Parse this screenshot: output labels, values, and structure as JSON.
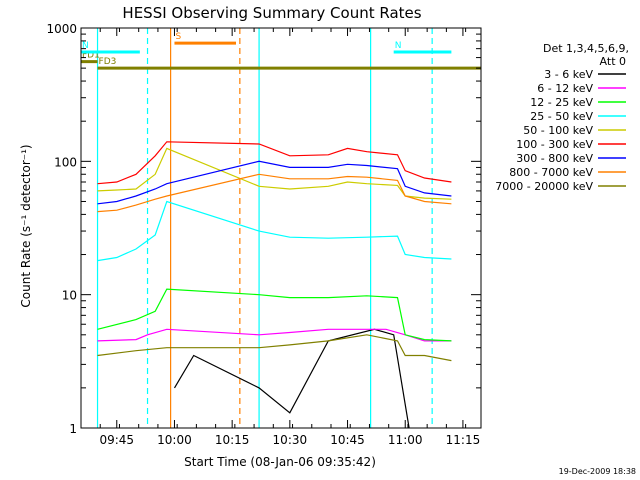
{
  "chart_data": {
    "type": "line",
    "title": "HESSI Observing Summary Count Rates",
    "xlabel": "Start Time (08-Jan-06 09:35:42)",
    "ylabel": "Count Rate (s⁻¹ detector⁻¹)",
    "ylog": true,
    "ylim": [
      1,
      1000
    ],
    "xlim_min_after_09_35": [
      0,
      104
    ],
    "x_ticks": [
      "09:45",
      "10:00",
      "10:15",
      "10:30",
      "10:45",
      "11:00",
      "11:15"
    ],
    "y_ticks": [
      "1",
      "10",
      "100",
      "1000"
    ],
    "legend_header": [
      "Det 1,3,4,5,6,9,",
      "Att 0"
    ],
    "legend_position": "right",
    "footer_date": "19-Dec-2009 18:38",
    "flag_labels": [
      "FD1",
      "FD3",
      "N",
      "S"
    ],
    "x_unit_note": "x values are clock times on 08-Jan-06",
    "series": [
      {
        "name": "3 - 6 keV",
        "color": "#000000",
        "x": [
          "10:00",
          "10:05",
          "10:22",
          "10:30",
          "10:40",
          "10:52",
          "10:57",
          "11:01"
        ],
        "y": [
          2.0,
          3.5,
          2.0,
          1.3,
          4.5,
          5.5,
          5.0,
          1.0
        ]
      },
      {
        "name": "6 - 12 keV",
        "color": "#ff00ff",
        "x": [
          "09:40",
          "09:50",
          "09:53",
          "09:58",
          "10:22",
          "10:30",
          "10:40",
          "10:50",
          "10:55",
          "11:00",
          "11:05",
          "11:12"
        ],
        "y": [
          4.5,
          4.6,
          5.0,
          5.5,
          5.0,
          5.2,
          5.5,
          5.5,
          5.5,
          5.0,
          4.5,
          4.5
        ]
      },
      {
        "name": "12 - 25 keV",
        "color": "#00ff00",
        "x": [
          "09:40",
          "09:50",
          "09:55",
          "09:58",
          "10:22",
          "10:30",
          "10:40",
          "10:50",
          "10:58",
          "11:00",
          "11:05",
          "11:12"
        ],
        "y": [
          5.5,
          6.5,
          7.5,
          11.0,
          10.0,
          9.5,
          9.5,
          9.8,
          9.5,
          5.0,
          4.6,
          4.5
        ]
      },
      {
        "name": "25 - 50 keV",
        "color": "#00ffff",
        "x": [
          "09:40",
          "09:45",
          "09:50",
          "09:55",
          "09:58",
          "10:22",
          "10:30",
          "10:40",
          "10:50",
          "10:58",
          "11:00",
          "11:05",
          "11:12"
        ],
        "y": [
          18.0,
          19.0,
          22.0,
          28.0,
          50.0,
          30.0,
          27.0,
          26.5,
          27.0,
          27.5,
          20.0,
          19.0,
          18.5
        ]
      },
      {
        "name": "50 - 100 keV",
        "color": "#cccc00",
        "x": [
          "09:40",
          "09:45",
          "09:50",
          "09:55",
          "09:58",
          "10:22",
          "10:30",
          "10:40",
          "10:45",
          "10:50",
          "10:58",
          "11:00",
          "11:05",
          "11:12"
        ],
        "y": [
          60.0,
          61.0,
          62.0,
          80.0,
          125.0,
          65.0,
          62.0,
          65.0,
          70.0,
          68.0,
          66.0,
          55.0,
          53.0,
          52.0
        ]
      },
      {
        "name": "100 - 300 keV",
        "color": "#ff0000",
        "x": [
          "09:40",
          "09:45",
          "09:50",
          "09:55",
          "09:58",
          "10:22",
          "10:30",
          "10:40",
          "10:45",
          "10:50",
          "10:58",
          "11:00",
          "11:05",
          "11:12"
        ],
        "y": [
          68.0,
          70.0,
          80.0,
          110.0,
          140.0,
          135.0,
          110.0,
          112.0,
          125.0,
          118.0,
          112.0,
          85.0,
          75.0,
          70.0
        ]
      },
      {
        "name": "300 - 800 keV",
        "color": "#0000ff",
        "x": [
          "09:40",
          "09:45",
          "09:50",
          "09:55",
          "09:58",
          "10:22",
          "10:30",
          "10:40",
          "10:45",
          "10:50",
          "10:58",
          "11:00",
          "11:05",
          "11:12"
        ],
        "y": [
          48.0,
          50.0,
          55.0,
          62.0,
          68.0,
          100.0,
          90.0,
          90.0,
          95.0,
          93.0,
          88.0,
          65.0,
          58.0,
          55.0
        ]
      },
      {
        "name": "800 - 7000 keV",
        "color": "#ff8000",
        "x": [
          "09:40",
          "09:45",
          "09:50",
          "09:55",
          "09:58",
          "10:22",
          "10:30",
          "10:40",
          "10:45",
          "10:50",
          "10:58",
          "11:00",
          "11:05",
          "11:12"
        ],
        "y": [
          42.0,
          43.0,
          47.0,
          52.0,
          55.0,
          80.0,
          74.0,
          74.0,
          77.0,
          76.0,
          72.0,
          55.0,
          50.0,
          48.0
        ]
      },
      {
        "name": "7000 - 20000 keV",
        "color": "#808000",
        "x": [
          "09:40",
          "09:50",
          "09:58",
          "10:22",
          "10:30",
          "10:40",
          "10:50",
          "10:58",
          "11:00",
          "11:05",
          "11:12"
        ],
        "y": [
          3.5,
          3.8,
          4.0,
          4.0,
          4.2,
          4.5,
          5.0,
          4.5,
          3.5,
          3.5,
          3.2
        ]
      }
    ],
    "flags": [
      {
        "label": "FD1",
        "color": "#808000",
        "x": [
          "09:35",
          "09:40"
        ],
        "y": 560
      },
      {
        "label": "FD3",
        "color": "#808000",
        "x": [
          "09:40",
          "11:15"
        ],
        "y": 500
      },
      {
        "label": "N",
        "color": "#00ffff",
        "x": [
          "09:35",
          "09:51"
        ],
        "y": 660
      },
      {
        "label": "N",
        "color": "#00ffff",
        "x": [
          "10:57",
          "11:12"
        ],
        "y": 660
      },
      {
        "label": "S",
        "color": "#ff8000",
        "x": [
          "10:00",
          "10:16"
        ],
        "y": 770
      }
    ],
    "vlines": [
      {
        "x": "09:40",
        "color": "#00ffff",
        "style": "solid"
      },
      {
        "x": "09:53",
        "color": "#00ffff",
        "style": "dashed"
      },
      {
        "x": "09:59",
        "color": "#ff8000",
        "style": "solid"
      },
      {
        "x": "10:17",
        "color": "#ff8000",
        "style": "dashed"
      },
      {
        "x": "10:22",
        "color": "#00ffff",
        "style": "solid"
      },
      {
        "x": "10:51",
        "color": "#00ffff",
        "style": "solid"
      },
      {
        "x": "11:07",
        "color": "#00ffff",
        "style": "dashed"
      }
    ]
  }
}
